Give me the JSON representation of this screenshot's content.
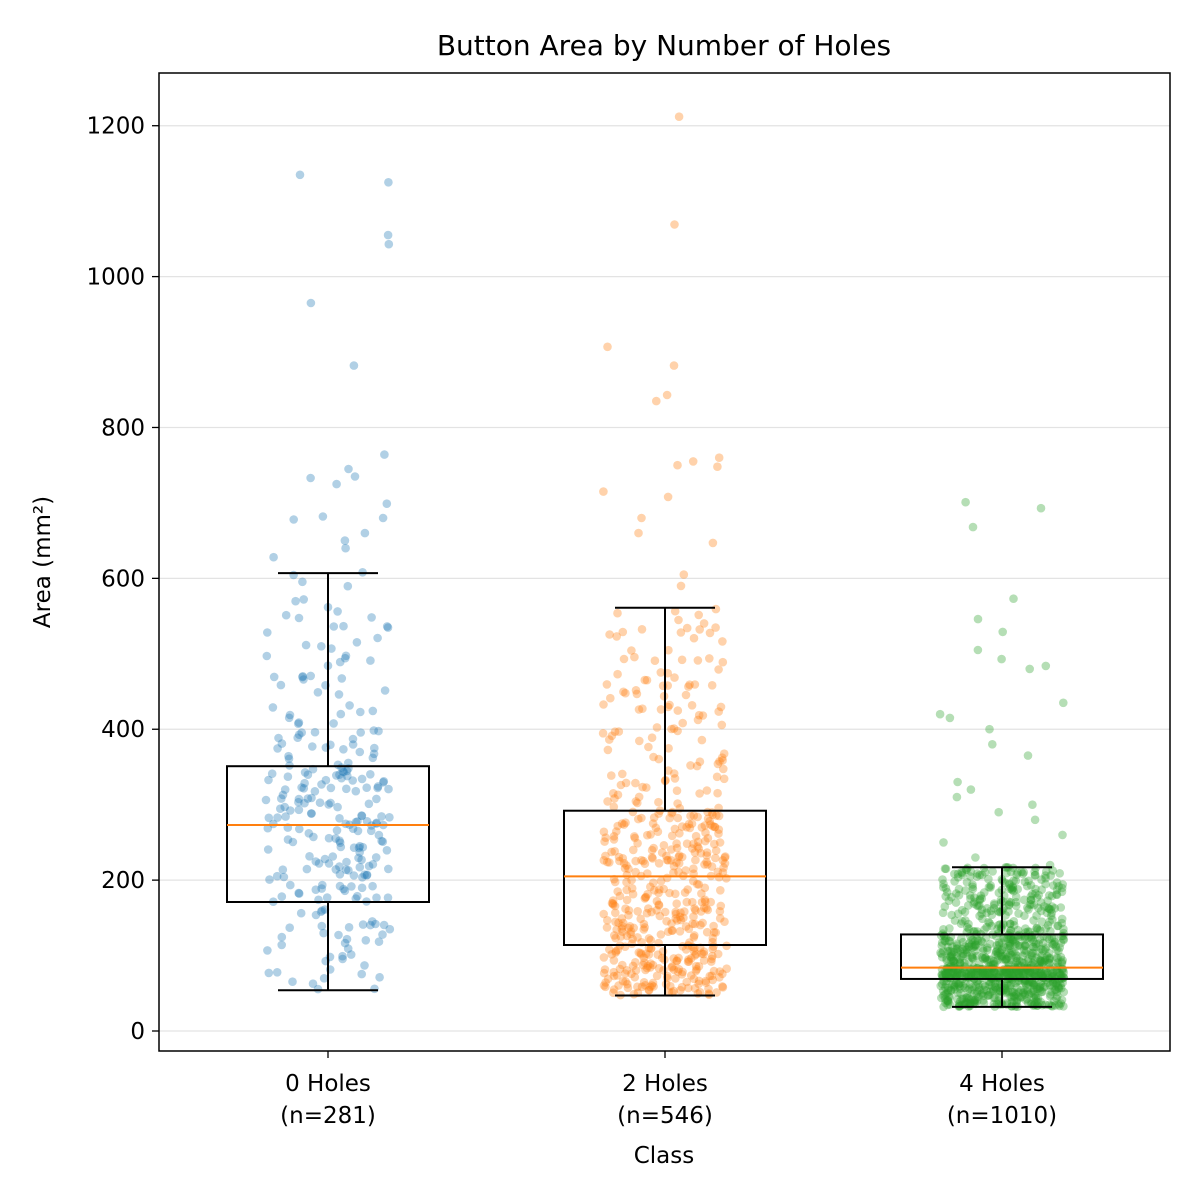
{
  "chart_data": {
    "type": "box",
    "title": "Button Area by Number of Holes",
    "xlabel": "Class",
    "ylabel": "Area (mm²)",
    "ylim": [
      -25,
      1270
    ],
    "yticks": [
      0,
      200,
      400,
      600,
      800,
      1000,
      1200
    ],
    "grid": "horizontal",
    "categories": [
      {
        "label": "0 Holes",
        "count_label": "(n=281)",
        "n": 281,
        "color": "#1f77b4",
        "whisker_low": 54,
        "q1": 171,
        "median": 273,
        "q3": 351,
        "whisker_high": 607,
        "outliers": [
          608,
          628,
          640,
          650,
          660,
          678,
          680,
          682,
          699,
          725,
          733,
          735,
          745,
          764,
          882,
          965,
          1043,
          1055,
          1125,
          1135
        ]
      },
      {
        "label": "2 Holes",
        "count_label": "(n=546)",
        "n": 546,
        "color": "#ff7f0e",
        "whisker_low": 47,
        "q1": 114,
        "median": 205,
        "q3": 292,
        "whisker_high": 561,
        "outliers": [
          590,
          605,
          647,
          660,
          680,
          708,
          715,
          748,
          750,
          755,
          760,
          835,
          843,
          882,
          907,
          1069,
          1212
        ]
      },
      {
        "label": "4 Holes",
        "count_label": "(n=1010)",
        "n": 1010,
        "color": "#2ca02c",
        "whisker_low": 32,
        "q1": 69,
        "median": 84,
        "q3": 128,
        "whisker_high": 217,
        "outliers": [
          220,
          230,
          250,
          260,
          280,
          290,
          300,
          310,
          320,
          330,
          365,
          380,
          400,
          415,
          420,
          435,
          480,
          484,
          493,
          505,
          529,
          546,
          573,
          668,
          693,
          701
        ]
      }
    ]
  }
}
